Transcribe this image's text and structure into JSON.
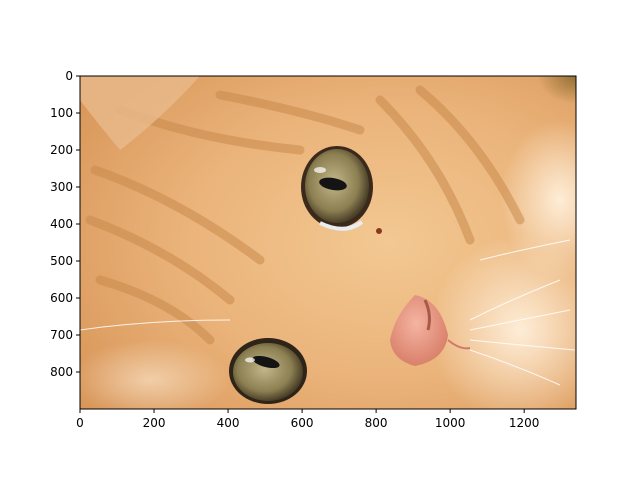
{
  "chart_data": {
    "type": "image",
    "subject": "close-up of an orange tabby kitten face",
    "xlim": [
      0,
      1340
    ],
    "ylim": [
      900,
      0
    ],
    "x_ticks": [
      0,
      200,
      400,
      600,
      800,
      1000,
      1200
    ],
    "y_ticks": [
      0,
      100,
      200,
      300,
      400,
      500,
      600,
      700,
      800
    ],
    "x_tick_labels": [
      "0",
      "200",
      "400",
      "600",
      "800",
      "1000",
      "1200"
    ],
    "y_tick_labels": [
      "0",
      "100",
      "200",
      "300",
      "400",
      "500",
      "600",
      "700",
      "800"
    ],
    "grid": false
  },
  "colors": {
    "fur_light": "#f6d3a6",
    "fur_mid": "#e8a868",
    "fur_dark": "#c77a3a",
    "eye_iris": "#9a8a5a",
    "eye_pupil": "#1a1a1a",
    "nose": "#e89a86",
    "axes": "#000000"
  }
}
